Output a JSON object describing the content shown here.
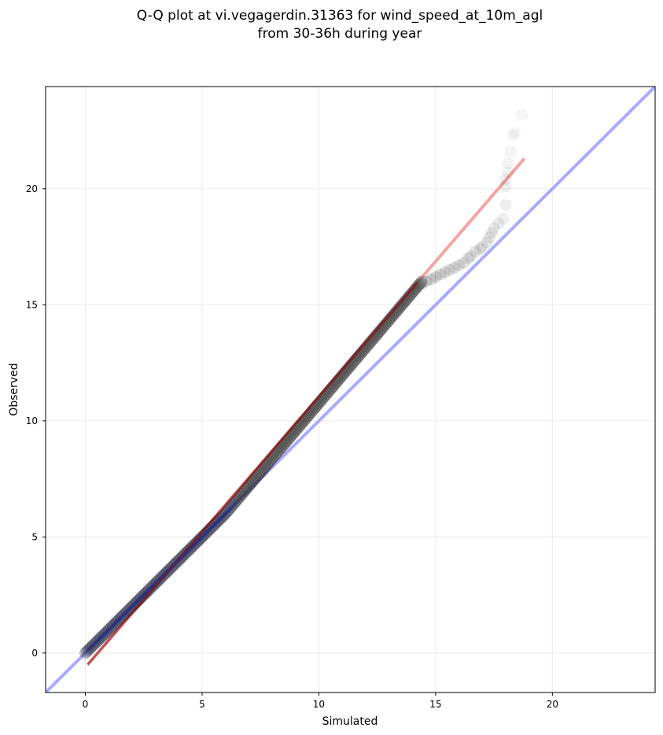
{
  "chart_data": {
    "type": "scatter",
    "title_lines": [
      "Q-Q plot at vi.vegagerdin.31363 for wind_speed_at_10m_agl",
      "from 30-36h during year"
    ],
    "xlabel": "Simulated",
    "ylabel": "Observed",
    "xlim": [
      -1.7,
      24.4
    ],
    "ylim": [
      -1.7,
      24.4
    ],
    "xticks": [
      0,
      5,
      10,
      15,
      20
    ],
    "yticks": [
      0,
      5,
      10,
      15,
      20
    ],
    "grid": true,
    "reference_line": {
      "name": "1:1 line",
      "color": "#aaaaff",
      "from": [
        -1.7,
        -1.7
      ],
      "to": [
        24.4,
        24.4
      ]
    },
    "fit_line": {
      "name": "fit",
      "color": "#f5a3a3",
      "from": [
        0.1,
        -0.5
      ],
      "to": [
        18.8,
        21.3
      ]
    },
    "points": {
      "color": "#000000",
      "dense_x_range": [
        0.0,
        14.4
      ],
      "dense_y_range": [
        0.0,
        16.0
      ],
      "upper_tail": [
        [
          14.4,
          15.9
        ],
        [
          14.6,
          16.0
        ],
        [
          14.8,
          16.1
        ],
        [
          15.0,
          16.2
        ],
        [
          15.2,
          16.3
        ],
        [
          15.4,
          16.4
        ],
        [
          15.6,
          16.5
        ],
        [
          15.8,
          16.6
        ],
        [
          16.0,
          16.7
        ],
        [
          16.2,
          16.8
        ],
        [
          16.4,
          17.0
        ],
        [
          16.5,
          17.1
        ],
        [
          16.7,
          17.3
        ],
        [
          16.9,
          17.4
        ],
        [
          17.0,
          17.5
        ],
        [
          17.2,
          17.7
        ],
        [
          17.3,
          17.9
        ],
        [
          17.4,
          18.1
        ],
        [
          17.5,
          18.3
        ],
        [
          17.7,
          18.5
        ],
        [
          17.9,
          18.7
        ],
        [
          18.0,
          19.3
        ],
        [
          18.0,
          20.1
        ],
        [
          18.0,
          20.4
        ],
        [
          18.1,
          20.7
        ],
        [
          18.1,
          21.1
        ],
        [
          18.2,
          21.6
        ],
        [
          18.3,
          22.3
        ],
        [
          18.4,
          22.4
        ],
        [
          18.7,
          23.2
        ]
      ]
    }
  }
}
